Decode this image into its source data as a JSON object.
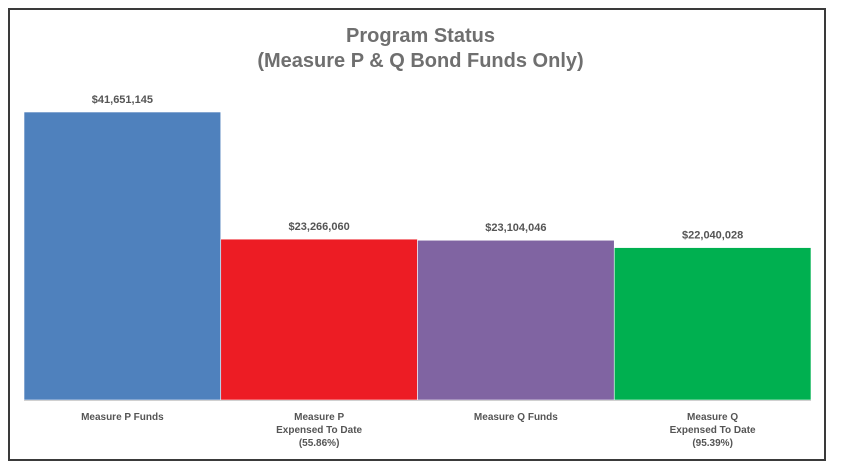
{
  "chart_data": {
    "type": "bar",
    "title": "Program Status",
    "subtitle": "(Measure P & Q Bond Funds Only)",
    "categories": [
      [
        "Measure P Funds"
      ],
      [
        "Measure P",
        "Expensed To Date",
        "(55.86%)"
      ],
      [
        "Measure Q Funds"
      ],
      [
        "Measure Q",
        "Expensed To Date",
        "(95.39%)"
      ]
    ],
    "values": [
      41651145,
      23266060,
      23104046,
      22040028
    ],
    "value_labels": [
      "$41,651,145",
      "$23,266,060",
      "$23,104,046",
      "$22,040,028"
    ],
    "colors": [
      "#4f81bd",
      "#ed1c24",
      "#8064a2",
      "#00b050"
    ],
    "ylim": [
      0,
      41651145
    ],
    "xlabel": "",
    "ylabel": "",
    "grid": false,
    "legend": "none"
  }
}
